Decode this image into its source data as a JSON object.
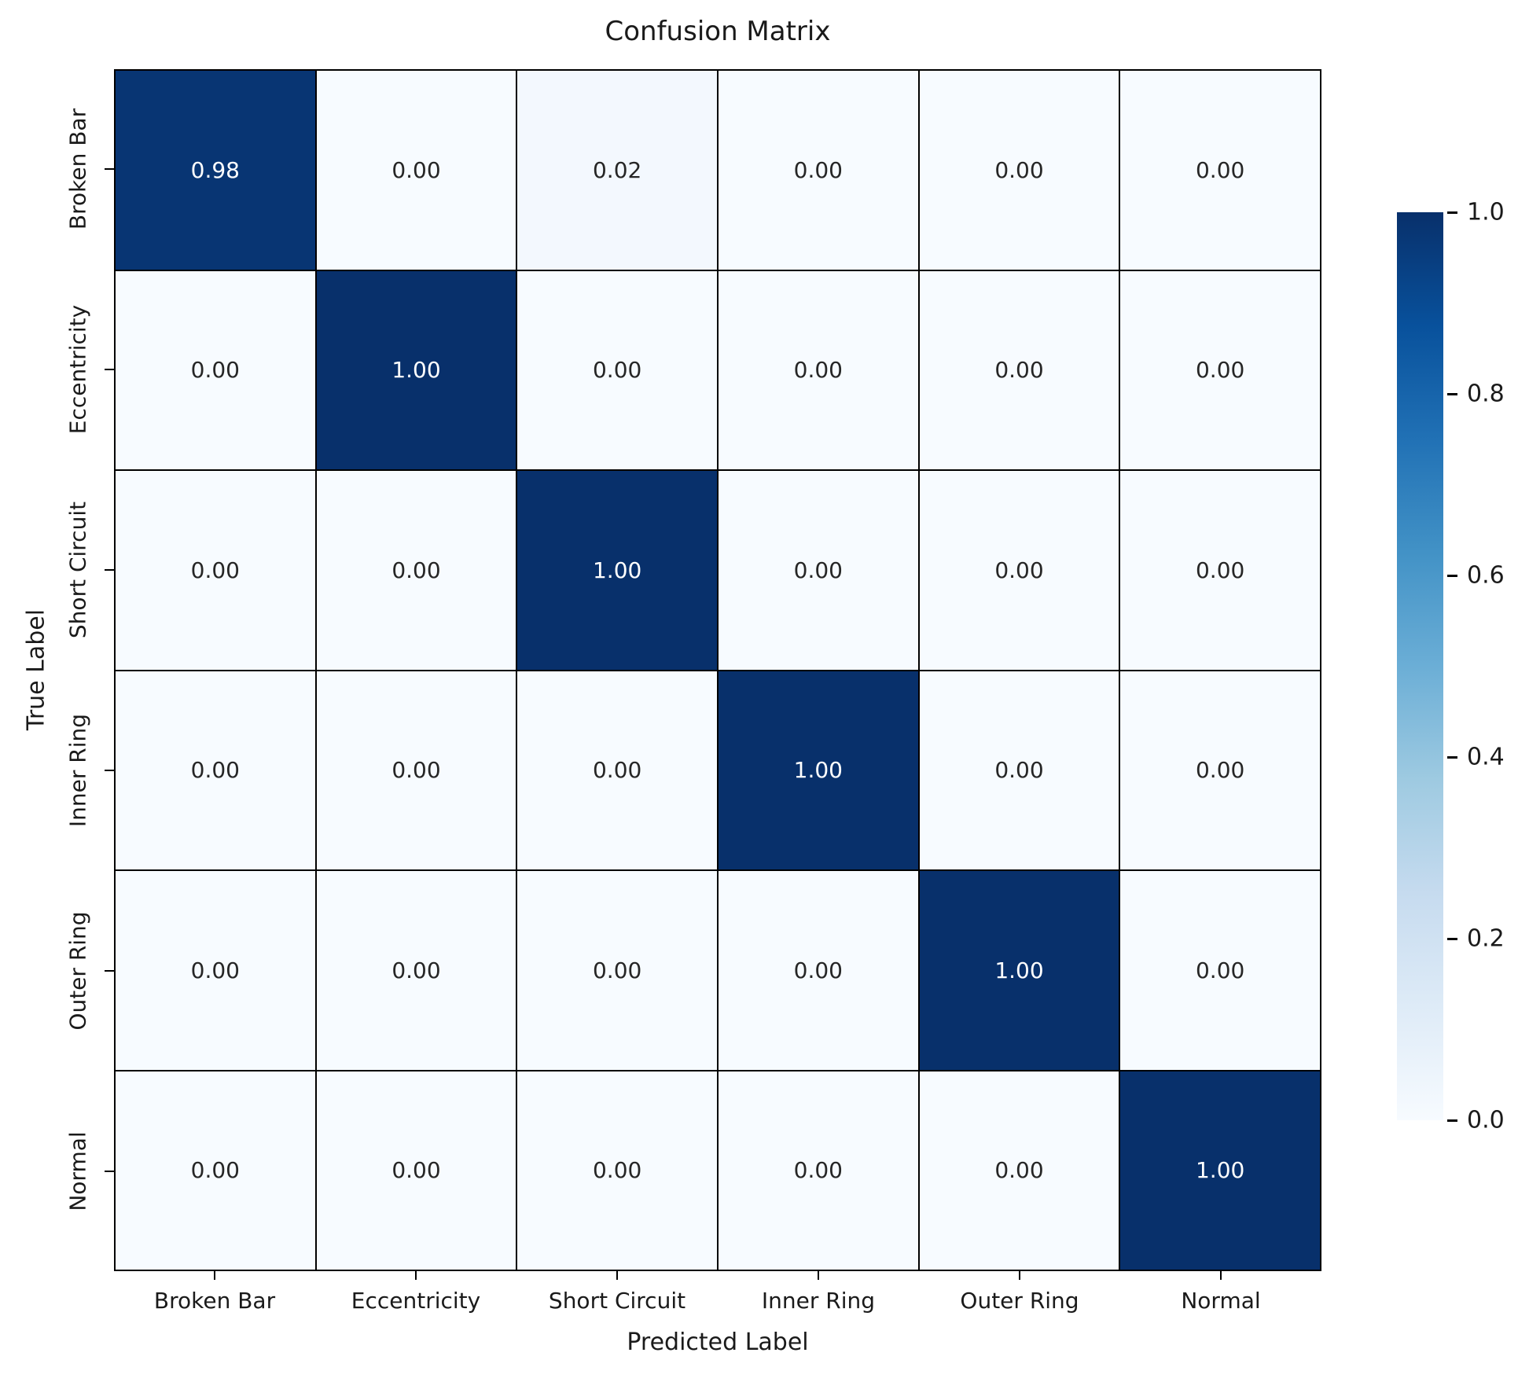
{
  "chart_data": {
    "type": "heatmap",
    "title": "Confusion Matrix",
    "xlabel": "Predicted Label",
    "ylabel": "True Label",
    "x_categories": [
      "Broken Bar",
      "Eccentricity",
      "Short Circuit",
      "Inner Ring",
      "Outer Ring",
      "Normal"
    ],
    "y_categories": [
      "Broken Bar",
      "Eccentricity",
      "Short Circuit",
      "Inner Ring",
      "Outer Ring",
      "Normal"
    ],
    "matrix": [
      [
        0.98,
        0.0,
        0.02,
        0.0,
        0.0,
        0.0
      ],
      [
        0.0,
        1.0,
        0.0,
        0.0,
        0.0,
        0.0
      ],
      [
        0.0,
        0.0,
        1.0,
        0.0,
        0.0,
        0.0
      ],
      [
        0.0,
        0.0,
        0.0,
        1.0,
        0.0,
        0.0
      ],
      [
        0.0,
        0.0,
        0.0,
        0.0,
        1.0,
        0.0
      ],
      [
        0.0,
        0.0,
        0.0,
        0.0,
        0.0,
        1.0
      ]
    ],
    "value_format_decimals": 2,
    "colormap": "Blues",
    "vmin": 0.0,
    "vmax": 1.0,
    "colorbar_ticks": [
      "1.0",
      "0.8",
      "0.6",
      "0.4",
      "0.2",
      "0.0"
    ],
    "colorbar_position": "right",
    "grid_line_color": "#000000",
    "color_max": "#08306b",
    "color_min": "#f7fbff",
    "annotation_color_on_dark": "#ffffff",
    "annotation_color_on_light": "#262626"
  }
}
